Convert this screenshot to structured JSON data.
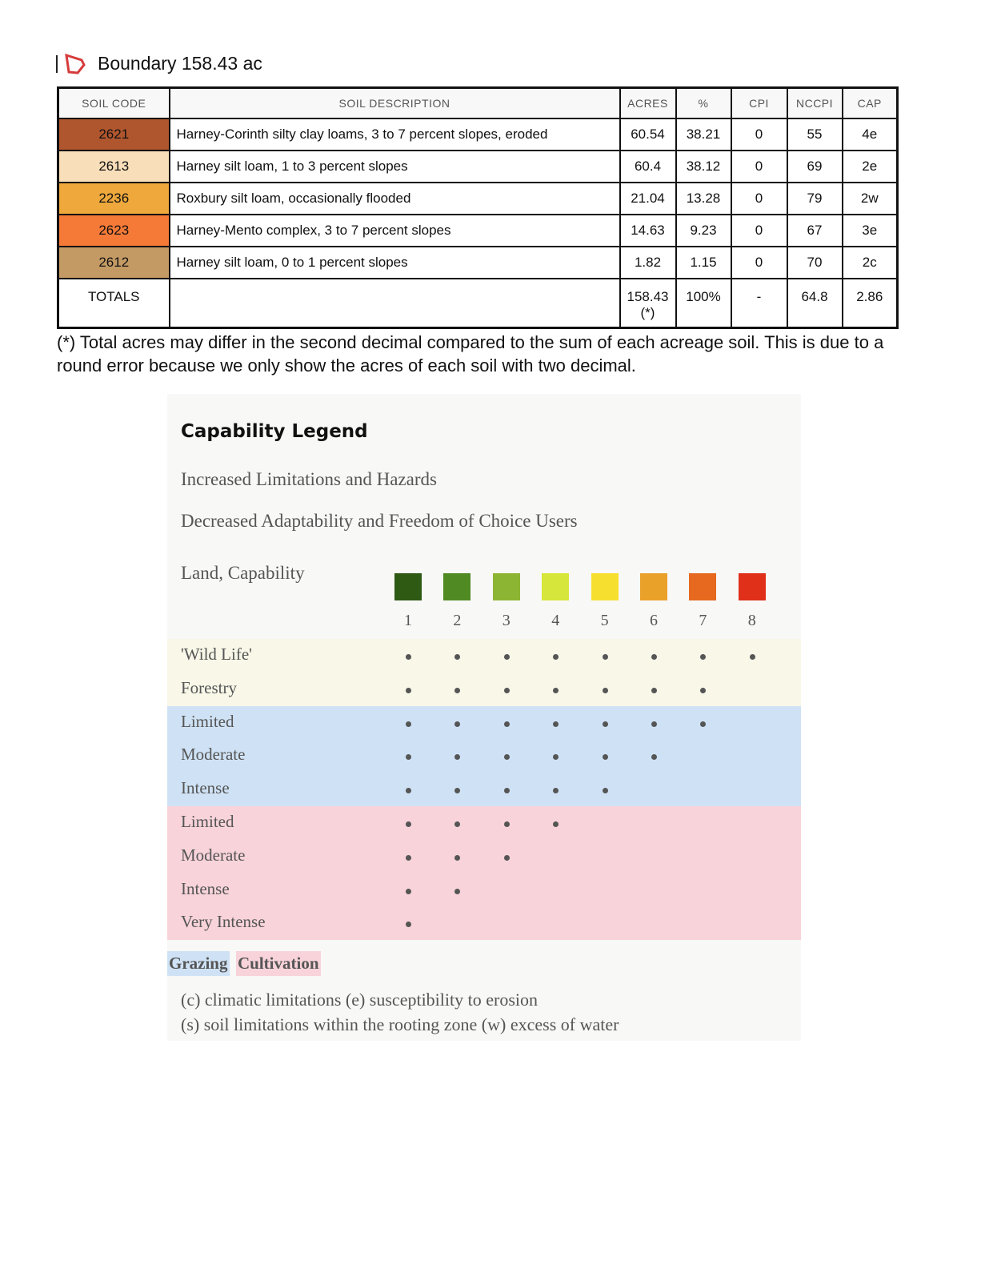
{
  "header": {
    "icon": "boundary-polygon-icon",
    "title": "Boundary 158.43 ac"
  },
  "table": {
    "columns": [
      "SOIL CODE",
      "SOIL DESCRIPTION",
      "ACRES",
      "%",
      "CPI",
      "NCCPI",
      "CAP"
    ],
    "rows": [
      {
        "code": "2621",
        "color": "#b0562e",
        "description": "Harney-Corinth silty clay loams, 3 to 7 percent slopes, eroded",
        "acres": "60.54",
        "percent": "38.21",
        "cpi": "0",
        "nccpi": "55",
        "cap": "4e"
      },
      {
        "code": "2613",
        "color": "#f8dfba",
        "description": "Harney silt loam, 1 to 3 percent slopes",
        "acres": "60.4",
        "percent": "38.12",
        "cpi": "0",
        "nccpi": "69",
        "cap": "2e"
      },
      {
        "code": "2236",
        "color": "#eea83c",
        "description": "Roxbury silt loam, occasionally flooded",
        "acres": "21.04",
        "percent": "13.28",
        "cpi": "0",
        "nccpi": "79",
        "cap": "2w"
      },
      {
        "code": "2623",
        "color": "#f57a37",
        "description": "Harney-Mento complex, 3 to 7 percent slopes",
        "acres": "14.63",
        "percent": "9.23",
        "cpi": "0",
        "nccpi": "67",
        "cap": "3e"
      },
      {
        "code": "2612",
        "color": "#c49a64",
        "description": "Harney silt loam, 0 to 1 percent slopes",
        "acres": "1.82",
        "percent": "1.15",
        "cpi": "0",
        "nccpi": "70",
        "cap": "2c"
      }
    ],
    "totals": {
      "label": "TOTALS",
      "description": "",
      "acres": "158.43(*)",
      "percent": "100%",
      "cpi": "-",
      "nccpi": "64.8",
      "cap": "2.86"
    }
  },
  "note": "(*) Total acres may differ in the second decimal compared to the sum of each acreage soil. This is due to a round error because we only show the acres of each soil with two decimal.",
  "legend": {
    "title": "Capability Legend",
    "line1": "Increased Limitations and Hazards",
    "line2": "Decreased Adaptability and Freedom of Choice Users",
    "land_label": "Land, Capability",
    "classes": [
      {
        "n": "1",
        "color": "#2e5a14"
      },
      {
        "n": "2",
        "color": "#4f8a22"
      },
      {
        "n": "3",
        "color": "#8db534"
      },
      {
        "n": "4",
        "color": "#d7e63a"
      },
      {
        "n": "5",
        "color": "#f7df30"
      },
      {
        "n": "6",
        "color": "#eaa12a"
      },
      {
        "n": "7",
        "color": "#e6691f"
      },
      {
        "n": "8",
        "color": "#e0301a"
      }
    ],
    "rows": [
      {
        "label": "'Wild Life'",
        "group": "other",
        "max_class": 8
      },
      {
        "label": "Forestry",
        "group": "other",
        "max_class": 7
      },
      {
        "label": "Limited",
        "group": "grazing",
        "max_class": 7
      },
      {
        "label": "Moderate",
        "group": "grazing",
        "max_class": 6
      },
      {
        "label": "Intense",
        "group": "grazing",
        "max_class": 5
      },
      {
        "label": "Limited",
        "group": "cultivation",
        "max_class": 4
      },
      {
        "label": "Moderate",
        "group": "cultivation",
        "max_class": 3
      },
      {
        "label": "Intense",
        "group": "cultivation",
        "max_class": 2
      },
      {
        "label": "Very Intense",
        "group": "cultivation",
        "max_class": 1
      }
    ],
    "group_colors": {
      "other": "#f8f7e8",
      "grazing": "#cfe2f5",
      "cultivation": "#f8d3da"
    },
    "grazing": "Grazing",
    "cultivation": "Cultivation",
    "key1": "(c) climatic limitations (e) susceptibility to erosion",
    "key2": "(s) soil limitations within the rooting zone (w) excess of water"
  }
}
